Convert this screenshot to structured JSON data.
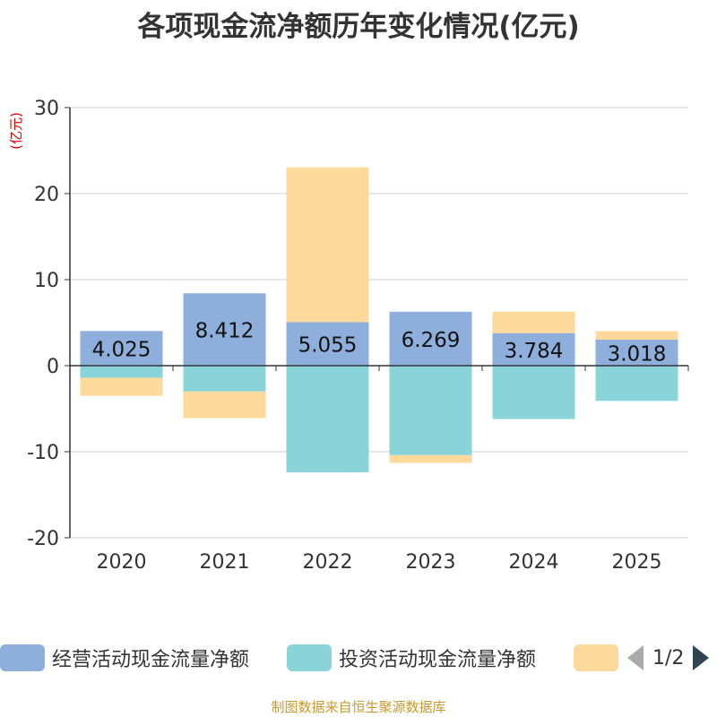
{
  "chart_data": {
    "type": "bar",
    "stacked": true,
    "title": "各项现金流净额历年变化情况(亿元)",
    "ylabel": "(亿元)",
    "ylim": [
      -20,
      30
    ],
    "yticks": [
      30,
      20,
      10,
      0,
      -10,
      -20
    ],
    "categories": [
      "2020",
      "2021",
      "2022",
      "2023",
      "2024",
      "2025"
    ],
    "series": [
      {
        "name": "经营活动现金流量净额",
        "color": "#8eaedb",
        "values": [
          4.025,
          8.412,
          5.055,
          6.269,
          3.784,
          3.018
        ],
        "labels": [
          "4.025",
          "8.412",
          "5.055",
          "6.269",
          "3.784",
          "3.018"
        ]
      },
      {
        "name": "投资活动现金流量净额",
        "color": "#88d4d8",
        "values": [
          -1.4,
          -3.0,
          -12.4,
          -10.4,
          -6.2,
          -4.1
        ]
      },
      {
        "name": "",
        "color": "#fdd99b",
        "values": [
          -2.1,
          -3.1,
          18.0,
          -0.9,
          2.5,
          1.0
        ]
      }
    ]
  },
  "legend": {
    "items": [
      {
        "label": "经营活动现金流量净额",
        "color": "#8eaedb"
      },
      {
        "label": "投资活动现金流量净额",
        "color": "#88d4d8"
      },
      {
        "label": "",
        "color": "#fdd99b"
      }
    ],
    "page_indicator": "1/2"
  },
  "source": "制图数据来自恒生聚源数据库"
}
